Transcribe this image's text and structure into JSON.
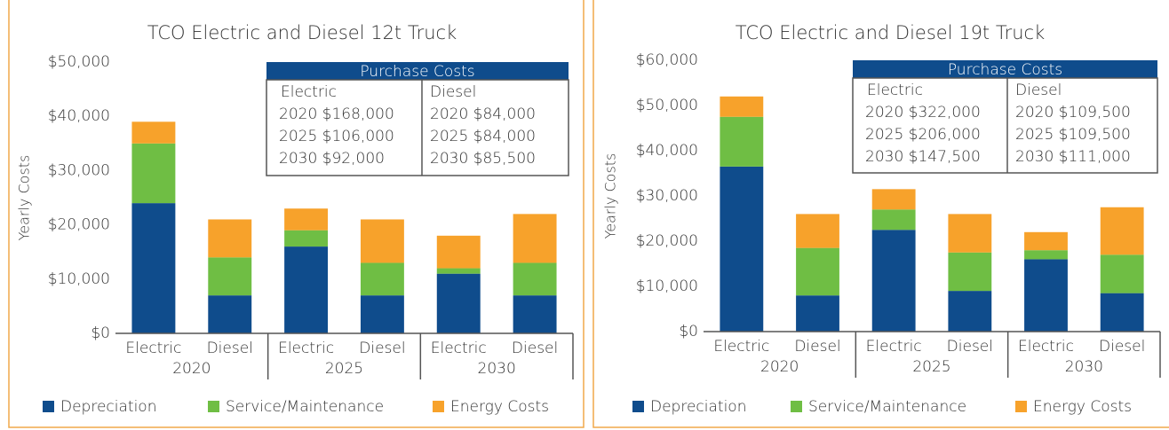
{
  "chart_data": [
    {
      "type": "bar",
      "stacked": true,
      "title": "TCO Electric and Diesel 12t Truck",
      "y_label": "Yearly Costs",
      "categories": [
        "Electric",
        "Diesel",
        "Electric",
        "Diesel",
        "Electric",
        "Diesel"
      ],
      "groups": [
        "2020",
        "2025",
        "2030"
      ],
      "series": [
        {
          "name": "Depreciation",
          "color": "#0f4c8c",
          "values": [
            24000,
            7000,
            16000,
            7000,
            11000,
            7000
          ]
        },
        {
          "name": "Service/Maintenance",
          "color": "#6fbe44",
          "values": [
            11000,
            7000,
            3000,
            6000,
            1000,
            6000
          ]
        },
        {
          "name": "Energy Costs",
          "color": "#f7a22b",
          "values": [
            4000,
            7000,
            4000,
            8000,
            6000,
            9000
          ]
        }
      ],
      "ylim": [
        0,
        50000
      ],
      "yticks": [
        {
          "value": 0,
          "label": "$0"
        },
        {
          "value": 10000,
          "label": "$10,000"
        },
        {
          "value": 20000,
          "label": "$20,000"
        },
        {
          "value": 30000,
          "label": "$30,000"
        },
        {
          "value": 40000,
          "label": "$40,000"
        },
        {
          "value": 50000,
          "label": "$50,000"
        }
      ],
      "legend": "bottom",
      "table": {
        "title": "Purchase Costs",
        "columns": [
          "Electric",
          "Diesel"
        ],
        "rows": [
          [
            "2020 $168,000",
            "2020 $84,000"
          ],
          [
            "2025 $106,000",
            "2025 $84,000"
          ],
          [
            "2030 $92,000",
            "2030 $85,500"
          ]
        ]
      }
    },
    {
      "type": "bar",
      "stacked": true,
      "title": "TCO Electric and Diesel 19t Truck",
      "y_label": "Yearly Costs",
      "categories": [
        "Electric",
        "Diesel",
        "Electric",
        "Diesel",
        "Electric",
        "Diesel"
      ],
      "groups": [
        "2020",
        "2025",
        "2030"
      ],
      "series": [
        {
          "name": "Depreciation",
          "color": "#0f4c8c",
          "values": [
            36500,
            8000,
            22500,
            9000,
            16000,
            8500
          ]
        },
        {
          "name": "Service/Maintenance",
          "color": "#6fbe44",
          "values": [
            11000,
            10500,
            4500,
            8500,
            2000,
            8500
          ]
        },
        {
          "name": "Energy Costs",
          "color": "#f7a22b",
          "values": [
            4500,
            7500,
            4500,
            8500,
            4000,
            10500
          ]
        }
      ],
      "ylim": [
        0,
        60000
      ],
      "yticks": [
        {
          "value": 0,
          "label": "$0"
        },
        {
          "value": 10000,
          "label": "$10,000"
        },
        {
          "value": 20000,
          "label": "$20,000"
        },
        {
          "value": 30000,
          "label": "$30,000"
        },
        {
          "value": 40000,
          "label": "$40,000"
        },
        {
          "value": 50000,
          "label": "$50,000"
        },
        {
          "value": 60000,
          "label": "$60,000"
        }
      ],
      "legend": "bottom",
      "table": {
        "title": "Purchase Costs",
        "columns": [
          "Electric",
          "Diesel"
        ],
        "rows": [
          [
            "2020 $322,000",
            "2020 $109,500"
          ],
          [
            "2025 $206,000",
            "2025 $109,500"
          ],
          [
            "2030 $147,500",
            "2030 $111,000"
          ]
        ]
      }
    }
  ]
}
